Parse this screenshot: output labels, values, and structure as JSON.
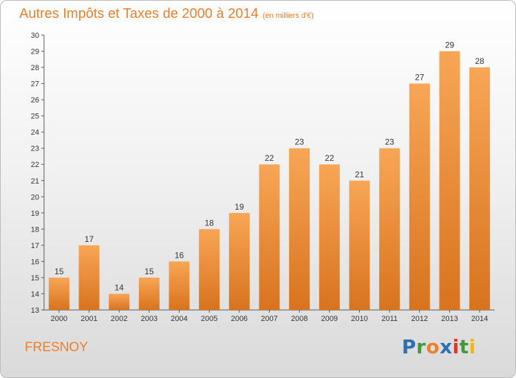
{
  "header": {
    "title": "Autres Impôts et Taxes de 2000 à 2014",
    "unit": "(en milliers d'€)"
  },
  "footer": {
    "location": "FRESNOY",
    "logo": "Proxiti"
  },
  "colors": {
    "accent": "#f07d2a",
    "bar_light": "#f7a656",
    "bar_dark": "#d8731e",
    "logo_letters": [
      "#2b6fb6",
      "#3f9a3a",
      "#e8822a",
      "#2b6fb6",
      "#d83a2a",
      "#3f9a3a",
      "#e8b820"
    ]
  },
  "chart_data": {
    "type": "bar",
    "categories": [
      "2000",
      "2001",
      "2002",
      "2003",
      "2004",
      "2005",
      "2006",
      "2007",
      "2008",
      "2009",
      "2010",
      "2011",
      "2012",
      "2013",
      "2014"
    ],
    "values": [
      15,
      17,
      14,
      15,
      16,
      18,
      19,
      22,
      23,
      22,
      21,
      23,
      27,
      29,
      28
    ],
    "title": "Autres Impôts et Taxes de 2000 à 2014",
    "ylim": [
      13,
      30
    ],
    "yticks": [
      13,
      14,
      15,
      16,
      17,
      18,
      19,
      20,
      21,
      22,
      23,
      24,
      25,
      26,
      27,
      28,
      29,
      30
    ],
    "grid": false,
    "data_labels": true
  }
}
